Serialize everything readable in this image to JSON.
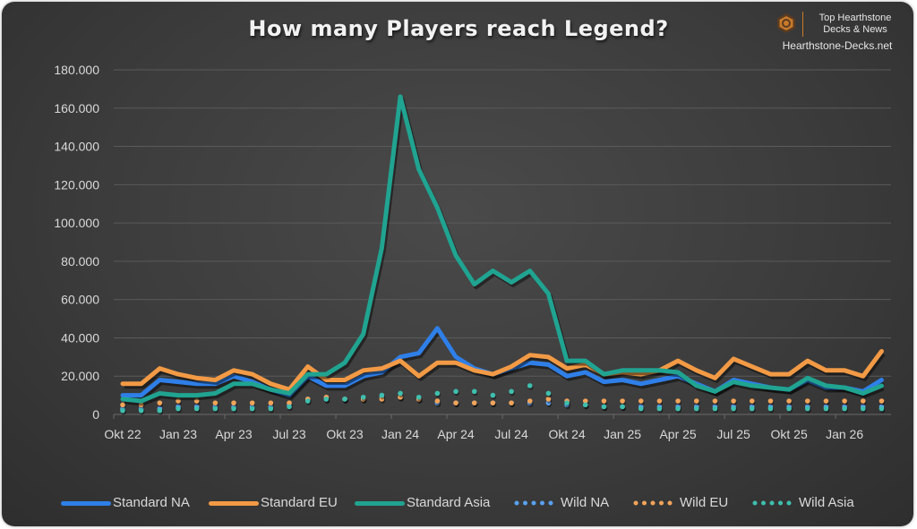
{
  "title": "How many Players reach Legend?",
  "brand": {
    "line1": "Top Hearthstone",
    "line2": "Decks & News",
    "url": "Hearthstone-Decks.net",
    "logo_icon": "hearthstone-hex-logo",
    "accent": "#c87a2a"
  },
  "legend": [
    {
      "label": "Standard NA",
      "style": "solid"
    },
    {
      "label": "Standard EU",
      "style": "solid"
    },
    {
      "label": "Standard Asia",
      "style": "solid"
    },
    {
      "label": "Wild NA",
      "style": "dotted"
    },
    {
      "label": "Wild EU",
      "style": "dotted"
    },
    {
      "label": "Wild Asia",
      "style": "dotted"
    }
  ],
  "chart_data": {
    "type": "line",
    "title": "How many Players reach Legend?",
    "xlabel": "",
    "ylabel": "",
    "ylim": [
      0,
      180000
    ],
    "yticks": [
      "0",
      "20.000",
      "40.000",
      "60.000",
      "80.000",
      "100.000",
      "120.000",
      "140.000",
      "160.000",
      "180.000"
    ],
    "xtick_labels": [
      "Okt 22",
      "Jan 23",
      "Apr 23",
      "Jul 23",
      "Okt 23",
      "Jan 24",
      "Apr 24",
      "Jul 24",
      "Okt 24",
      "Jan 25",
      "Apr 25",
      "Jul 25",
      "Okt 25",
      "Jan 26"
    ],
    "grid": true,
    "legend_position": "bottom",
    "x": [
      "Okt 22",
      "Nov 22",
      "Dez 22",
      "Jan 23",
      "Feb 23",
      "Mär 23",
      "Apr 23",
      "Mai 23",
      "Jun 23",
      "Jul 23",
      "Aug 23",
      "Sep 23",
      "Okt 23",
      "Nov 23",
      "Dez 23",
      "Jan 24",
      "Feb 24",
      "Mär 24",
      "Apr 24",
      "Mai 24",
      "Jun 24",
      "Jul 24",
      "Aug 24",
      "Sep 24",
      "Okt 24",
      "Nov 24",
      "Dez 24",
      "Jan 25",
      "Feb 25",
      "Mär 25",
      "Apr 25",
      "Mai 25",
      "Jun 25",
      "Jul 25",
      "Aug 25",
      "Sep 25",
      "Okt 25",
      "Nov 25",
      "Dez 25",
      "Jan 26",
      "Feb 26",
      "Mär 26"
    ],
    "series": [
      {
        "name": "Standard NA",
        "color": "#2f7fe8",
        "style": "solid",
        "values": [
          10000,
          10000,
          18000,
          17000,
          16000,
          16000,
          20000,
          17000,
          13000,
          10000,
          20000,
          15000,
          15000,
          20000,
          22000,
          30000,
          32000,
          45000,
          30000,
          24000,
          21000,
          24000,
          27000,
          26000,
          20000,
          22000,
          17000,
          18000,
          16000,
          18000,
          20000,
          16000,
          12000,
          18000,
          16000,
          14000,
          13000,
          18000,
          14000,
          14000,
          12000,
          18000
        ]
      },
      {
        "name": "Standard EU",
        "color": "#f29a45",
        "style": "solid",
        "values": [
          16000,
          16000,
          24000,
          21000,
          19000,
          18000,
          23000,
          21000,
          16000,
          13000,
          25000,
          18000,
          18000,
          23000,
          24000,
          28000,
          20000,
          27000,
          27000,
          23000,
          21000,
          25000,
          31000,
          30000,
          24000,
          26000,
          21000,
          22000,
          21000,
          23000,
          28000,
          23000,
          19000,
          29000,
          25000,
          21000,
          21000,
          28000,
          23000,
          23000,
          20000,
          33000
        ]
      },
      {
        "name": "Standard Asia",
        "color": "#20a491",
        "style": "solid",
        "values": [
          8000,
          7000,
          11000,
          10000,
          10000,
          11000,
          16000,
          16000,
          13000,
          11000,
          21000,
          21000,
          27000,
          42000,
          87000,
          166000,
          128000,
          108000,
          83000,
          68000,
          75000,
          69000,
          75000,
          63000,
          28000,
          28000,
          21000,
          23000,
          23000,
          23000,
          22000,
          15000,
          12000,
          17000,
          15000,
          14000,
          13000,
          19000,
          15000,
          14000,
          11000,
          15000
        ]
      },
      {
        "name": "Wild NA",
        "color": "#5aa0ef",
        "style": "dotted",
        "values": [
          3000,
          3000,
          3000,
          4000,
          4000,
          4000,
          4000,
          4000,
          4000,
          5000,
          8000,
          8000,
          8000,
          8000,
          9000,
          9000,
          8000,
          6000,
          6000,
          6000,
          6000,
          6000,
          6000,
          6000,
          5000,
          5000,
          4000,
          4000,
          4000,
          4000,
          4000,
          4000,
          4000,
          4000,
          4000,
          4000,
          4000,
          4000,
          4000,
          4000,
          4000,
          4000
        ]
      },
      {
        "name": "Wild EU",
        "color": "#f2a45a",
        "style": "dotted",
        "values": [
          5000,
          5000,
          6000,
          7000,
          7000,
          6000,
          6000,
          6000,
          6000,
          6000,
          8000,
          9000,
          8000,
          8000,
          8000,
          9000,
          8000,
          7000,
          6000,
          6000,
          6000,
          6000,
          7000,
          8000,
          7000,
          7000,
          7000,
          7000,
          7000,
          7000,
          7000,
          7000,
          7000,
          7000,
          7000,
          7000,
          7000,
          7000,
          7000,
          7000,
          7000,
          7000
        ]
      },
      {
        "name": "Wild Asia",
        "color": "#3fbfae",
        "style": "dotted",
        "values": [
          2000,
          2000,
          2000,
          3000,
          3000,
          3000,
          3000,
          3000,
          3000,
          4000,
          7000,
          8000,
          8000,
          9000,
          10000,
          11000,
          9000,
          11000,
          12000,
          12000,
          10000,
          12000,
          15000,
          11000,
          6000,
          5000,
          4000,
          4000,
          3000,
          3000,
          3000,
          3000,
          3000,
          3000,
          3000,
          3000,
          3000,
          3000,
          3000,
          3000,
          3000,
          3000
        ]
      }
    ]
  }
}
